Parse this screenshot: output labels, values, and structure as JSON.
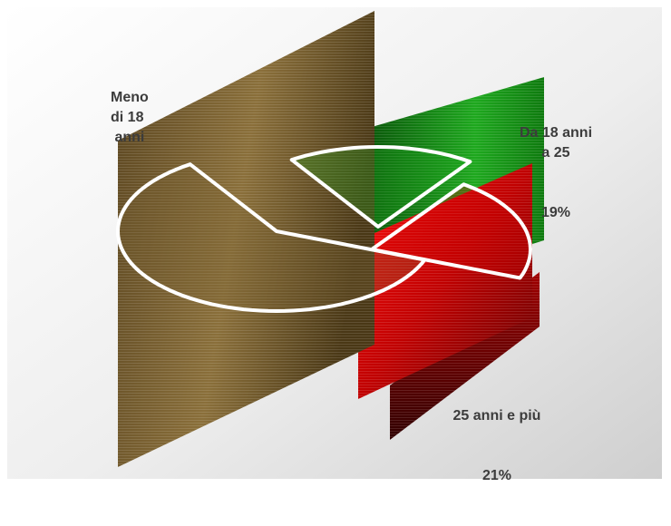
{
  "chart_data": {
    "type": "pie",
    "style": "3d-exploded-with-slanted-panels",
    "title": "",
    "slices": [
      {
        "label": "Meno\ndi 18\n anni",
        "value": 60,
        "value_label": "",
        "color": "#7a6234"
      },
      {
        "label": "Da 18 anni\na 25",
        "value": 19,
        "value_label": "19%",
        "color": "#18a018"
      },
      {
        "label": "25 anni e più",
        "value": 21,
        "value_label": "21%",
        "color": "#c80000"
      }
    ],
    "legend": "none",
    "background": "light gray radial gradient"
  }
}
